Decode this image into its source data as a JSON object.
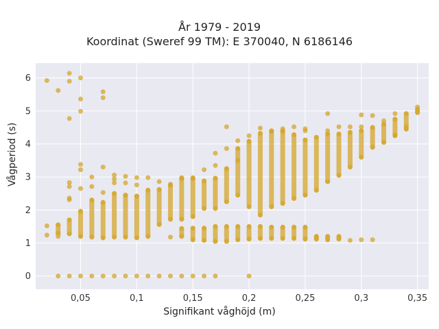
{
  "chart_data": {
    "type": "scatter",
    "title": "År 1979 - 2019",
    "subtitle": "Koordinat (Sweref 99 TM): E 370040, N 6186146",
    "xlabel": "Signifikant våghöjd (m)",
    "ylabel": "Vågperiod (s)",
    "xlim": [
      0.01,
      0.36
    ],
    "ylim": [
      -0.4,
      6.45
    ],
    "x_ticks": [
      0.05,
      0.1,
      0.15,
      0.2,
      0.25,
      0.3,
      0.35
    ],
    "x_tick_labels": [
      "0,05",
      "0,1",
      "0,15",
      "0,2",
      "0,25",
      "0,3",
      "0,35"
    ],
    "y_ticks": [
      0,
      1,
      2,
      3,
      4,
      5,
      6
    ],
    "y_tick_labels": [
      "0",
      "1",
      "2",
      "3",
      "4",
      "5",
      "6"
    ],
    "grid": true,
    "background": "#e9e9f2",
    "point_color": "#d4a62a",
    "point_opacity": 0.75,
    "series": [
      {
        "points": [
          [
            0.02,
            5.92
          ],
          [
            0.03,
            5.62
          ],
          [
            0.04,
            6.14
          ],
          [
            0.04,
            5.9
          ],
          [
            0.05,
            6.0
          ],
          [
            0.05,
            5.36
          ],
          [
            0.05,
            4.99
          ],
          [
            0.04,
            4.77
          ],
          [
            0.07,
            5.58
          ],
          [
            0.07,
            5.4
          ],
          [
            0.05,
            3.38
          ],
          [
            0.05,
            3.22
          ],
          [
            0.06,
            3.0
          ],
          [
            0.07,
            3.3
          ],
          [
            0.04,
            2.83
          ],
          [
            0.04,
            2.71
          ],
          [
            0.05,
            2.65
          ],
          [
            0.06,
            2.71
          ],
          [
            0.04,
            2.36
          ],
          [
            0.04,
            2.31
          ],
          [
            0.07,
            2.53
          ],
          [
            0.08,
            3.06
          ],
          [
            0.08,
            2.94
          ],
          [
            0.08,
            2.82
          ],
          [
            0.09,
            3.02
          ],
          [
            0.09,
            2.82
          ],
          [
            0.1,
            2.98
          ],
          [
            0.1,
            2.76
          ],
          [
            0.11,
            2.98
          ],
          [
            0.12,
            2.86
          ],
          [
            0.13,
            2.78
          ],
          [
            0.14,
            2.98
          ],
          [
            0.15,
            2.98
          ],
          [
            0.16,
            3.22
          ],
          [
            0.17,
            3.72
          ],
          [
            0.17,
            3.35
          ],
          [
            0.18,
            4.52
          ],
          [
            0.18,
            3.86
          ],
          [
            0.19,
            4.1
          ],
          [
            0.19,
            3.5
          ],
          [
            0.2,
            4.25
          ],
          [
            0.21,
            4.48
          ],
          [
            0.22,
            4.4
          ],
          [
            0.23,
            4.4
          ],
          [
            0.23,
            4.46
          ],
          [
            0.24,
            4.52
          ],
          [
            0.25,
            4.4
          ],
          [
            0.25,
            4.46
          ],
          [
            0.27,
            4.92
          ],
          [
            0.27,
            4.4
          ],
          [
            0.28,
            4.52
          ],
          [
            0.29,
            4.52
          ],
          [
            0.3,
            4.88
          ],
          [
            0.3,
            4.52
          ],
          [
            0.31,
            4.86
          ],
          [
            0.32,
            4.7
          ],
          [
            0.33,
            4.92
          ],
          [
            0.33,
            4.27
          ],
          [
            0.34,
            4.52
          ],
          [
            0.35,
            5.12
          ],
          [
            0.02,
            1.52
          ],
          [
            0.02,
            1.24
          ],
          [
            0.03,
            1.55
          ],
          [
            0.03,
            1.3
          ],
          [
            0.04,
            1.7
          ],
          [
            0.04,
            1.28
          ],
          [
            0.05,
            1.96
          ],
          [
            0.05,
            1.2
          ],
          [
            0.06,
            2.3
          ],
          [
            0.06,
            1.18
          ],
          [
            0.07,
            2.23
          ],
          [
            0.07,
            1.16
          ],
          [
            0.08,
            2.5
          ],
          [
            0.08,
            1.18
          ],
          [
            0.09,
            2.45
          ],
          [
            0.09,
            1.18
          ],
          [
            0.1,
            2.42
          ],
          [
            0.1,
            1.16
          ],
          [
            0.11,
            2.6
          ],
          [
            0.11,
            1.2
          ],
          [
            0.12,
            2.62
          ],
          [
            0.12,
            1.56
          ],
          [
            0.13,
            2.75
          ],
          [
            0.13,
            1.72
          ],
          [
            0.14,
            2.95
          ],
          [
            0.14,
            1.72
          ],
          [
            0.15,
            2.95
          ],
          [
            0.15,
            1.8
          ],
          [
            0.16,
            2.88
          ],
          [
            0.16,
            2.05
          ],
          [
            0.17,
            2.96
          ],
          [
            0.17,
            2.05
          ],
          [
            0.18,
            3.25
          ],
          [
            0.18,
            2.25
          ],
          [
            0.19,
            3.86
          ],
          [
            0.19,
            2.45
          ],
          [
            0.2,
            4.08
          ],
          [
            0.2,
            2.1
          ],
          [
            0.21,
            4.32
          ],
          [
            0.21,
            1.85
          ],
          [
            0.22,
            4.38
          ],
          [
            0.22,
            2.1
          ],
          [
            0.23,
            4.38
          ],
          [
            0.23,
            2.2
          ],
          [
            0.24,
            4.28
          ],
          [
            0.24,
            2.35
          ],
          [
            0.25,
            4.12
          ],
          [
            0.25,
            2.45
          ],
          [
            0.26,
            4.2
          ],
          [
            0.26,
            2.6
          ],
          [
            0.27,
            4.3
          ],
          [
            0.27,
            2.86
          ],
          [
            0.28,
            4.3
          ],
          [
            0.28,
            3.05
          ],
          [
            0.29,
            4.35
          ],
          [
            0.29,
            3.3
          ],
          [
            0.3,
            4.4
          ],
          [
            0.3,
            3.6
          ],
          [
            0.31,
            4.5
          ],
          [
            0.31,
            3.9
          ],
          [
            0.32,
            4.6
          ],
          [
            0.32,
            4.05
          ],
          [
            0.33,
            4.75
          ],
          [
            0.33,
            4.25
          ],
          [
            0.34,
            4.92
          ],
          [
            0.34,
            4.45
          ],
          [
            0.35,
            5.05
          ],
          [
            0.35,
            4.95
          ],
          [
            0.13,
            1.18
          ],
          [
            0.14,
            1.2
          ],
          [
            0.14,
            1.44
          ],
          [
            0.15,
            1.1
          ],
          [
            0.15,
            1.45
          ],
          [
            0.16,
            1.08
          ],
          [
            0.16,
            1.45
          ],
          [
            0.17,
            1.05
          ],
          [
            0.17,
            1.5
          ],
          [
            0.18,
            1.05
          ],
          [
            0.18,
            1.5
          ],
          [
            0.19,
            1.1
          ],
          [
            0.19,
            1.5
          ],
          [
            0.2,
            1.12
          ],
          [
            0.2,
            1.5
          ],
          [
            0.21,
            1.14
          ],
          [
            0.21,
            1.5
          ],
          [
            0.22,
            1.14
          ],
          [
            0.22,
            1.48
          ],
          [
            0.23,
            1.14
          ],
          [
            0.23,
            1.48
          ],
          [
            0.24,
            1.14
          ],
          [
            0.24,
            1.48
          ],
          [
            0.25,
            1.12
          ],
          [
            0.25,
            1.48
          ],
          [
            0.26,
            1.12
          ],
          [
            0.26,
            1.2
          ],
          [
            0.27,
            1.1
          ],
          [
            0.27,
            1.2
          ],
          [
            0.28,
            1.12
          ],
          [
            0.28,
            1.2
          ],
          [
            0.29,
            1.08
          ],
          [
            0.3,
            1.1
          ],
          [
            0.31,
            1.1
          ],
          [
            0.03,
            0.0
          ],
          [
            0.04,
            0.0
          ],
          [
            0.05,
            0.0
          ],
          [
            0.06,
            0.0
          ],
          [
            0.07,
            0.0
          ],
          [
            0.08,
            0.0
          ],
          [
            0.09,
            0.0
          ],
          [
            0.1,
            0.0
          ],
          [
            0.11,
            0.0
          ],
          [
            0.12,
            0.0
          ],
          [
            0.13,
            0.0
          ],
          [
            0.14,
            0.0
          ],
          [
            0.15,
            0.0
          ],
          [
            0.16,
            0.0
          ],
          [
            0.17,
            0.0
          ],
          [
            0.2,
            0.0
          ]
        ],
        "ranges": [
          [
            0.03,
            1.2,
            1.55
          ],
          [
            0.04,
            1.28,
            1.7
          ],
          [
            0.05,
            1.2,
            1.96
          ],
          [
            0.06,
            1.18,
            2.3
          ],
          [
            0.07,
            1.16,
            2.23
          ],
          [
            0.08,
            1.18,
            2.5
          ],
          [
            0.09,
            1.18,
            2.45
          ],
          [
            0.1,
            1.16,
            2.42
          ],
          [
            0.11,
            1.2,
            2.6
          ],
          [
            0.12,
            1.56,
            2.62
          ],
          [
            0.13,
            1.72,
            2.75
          ],
          [
            0.14,
            1.72,
            2.95
          ],
          [
            0.15,
            1.8,
            2.95
          ],
          [
            0.16,
            2.05,
            2.88
          ],
          [
            0.17,
            2.05,
            2.96
          ],
          [
            0.18,
            2.25,
            3.25
          ],
          [
            0.19,
            2.45,
            3.86
          ],
          [
            0.2,
            2.1,
            4.08
          ],
          [
            0.21,
            1.85,
            4.32
          ],
          [
            0.22,
            2.1,
            4.38
          ],
          [
            0.23,
            2.2,
            4.38
          ],
          [
            0.24,
            2.35,
            4.28
          ],
          [
            0.25,
            2.45,
            4.12
          ],
          [
            0.26,
            2.6,
            4.2
          ],
          [
            0.27,
            2.86,
            4.3
          ],
          [
            0.28,
            3.05,
            4.3
          ],
          [
            0.29,
            3.3,
            4.35
          ],
          [
            0.3,
            3.6,
            4.4
          ],
          [
            0.31,
            3.9,
            4.5
          ],
          [
            0.32,
            4.05,
            4.6
          ],
          [
            0.33,
            4.25,
            4.75
          ],
          [
            0.34,
            4.45,
            4.92
          ],
          [
            0.35,
            4.95,
            5.05
          ],
          [
            0.14,
            1.2,
            1.44
          ],
          [
            0.15,
            1.1,
            1.45
          ],
          [
            0.16,
            1.08,
            1.45
          ],
          [
            0.17,
            1.05,
            1.5
          ],
          [
            0.18,
            1.05,
            1.5
          ],
          [
            0.19,
            1.1,
            1.5
          ],
          [
            0.2,
            1.12,
            1.5
          ],
          [
            0.21,
            1.14,
            1.5
          ],
          [
            0.22,
            1.14,
            1.48
          ],
          [
            0.23,
            1.14,
            1.48
          ],
          [
            0.24,
            1.14,
            1.48
          ],
          [
            0.25,
            1.12,
            1.48
          ],
          [
            0.26,
            1.12,
            1.2
          ],
          [
            0.27,
            1.1,
            1.2
          ],
          [
            0.28,
            1.12,
            1.2
          ]
        ]
      }
    ]
  }
}
